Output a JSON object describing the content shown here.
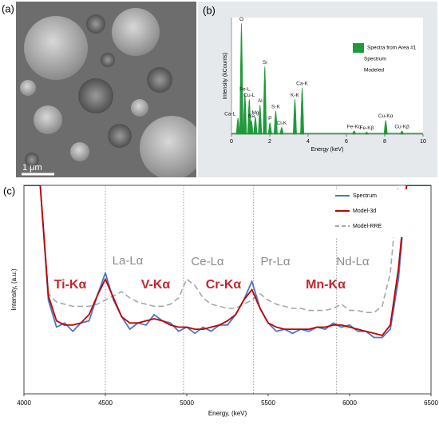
{
  "panels": {
    "a": "(a)",
    "b": "(b)",
    "c": "(c)"
  },
  "image": {
    "scale_bar": "1 μm"
  },
  "chart_data": [
    {
      "type": "spectrum",
      "xlabel": "Energy (keV)",
      "ylabel": "Intensity (kCounts)",
      "xlim": [
        0,
        10
      ],
      "xticks": [
        0,
        2,
        4,
        6,
        8,
        10
      ],
      "ylim": [
        0,
        100
      ],
      "color": "#1f9a3a",
      "legend": [
        "Spectra from Area #1",
        "Spectrum",
        "Modeled"
      ],
      "peaks": {
        "labels": [
          "Ca-L",
          "O",
          "Fe-L",
          "Cu-L",
          "Na",
          "Mg",
          "Al",
          "Si",
          "P",
          "S-K",
          "Cl-K",
          "K-K",
          "Ca-K",
          "Fe-Kα",
          "Fe-Kβ",
          "Cu-Kα",
          "Cu-Kβ"
        ],
        "energy": [
          0.34,
          0.52,
          0.7,
          0.93,
          1.04,
          1.25,
          1.49,
          1.74,
          2.01,
          2.31,
          2.62,
          3.31,
          3.69,
          6.4,
          7.06,
          8.05,
          8.9
        ],
        "height": [
          14,
          95,
          35,
          30,
          12,
          15,
          25,
          58,
          10,
          20,
          6,
          30,
          40,
          3,
          2,
          12,
          3
        ]
      }
    },
    {
      "type": "line",
      "xlabel": "Energy, (keV)",
      "ylabel": "Intensity, (a.u.)",
      "xlim": [
        4000,
        6500
      ],
      "xticks": [
        4000,
        4500,
        5000,
        5500,
        6000,
        6500
      ],
      "ylim": [
        0,
        100
      ],
      "yticks": [],
      "reference_lines": [
        4500,
        4980,
        5410,
        5920
      ],
      "annotations": [
        {
          "text": "Ti-Kα",
          "color": "#c0282d"
        },
        {
          "text": "La-Lα",
          "color": "#8c8c8c"
        },
        {
          "text": "V-Kα",
          "color": "#c0282d"
        },
        {
          "text": "Ce-Lα",
          "color": "#8c8c8c"
        },
        {
          "text": "Cr-Kα",
          "color": "#c0282d"
        },
        {
          "text": "Pr-Lα",
          "color": "#8c8c8c"
        },
        {
          "text": "Mn-Kα",
          "color": "#c0282d"
        },
        {
          "text": "Nd-Lα",
          "color": "#8c8c8c"
        }
      ],
      "x": [
        4000,
        4050,
        4100,
        4150,
        4200,
        4250,
        4300,
        4350,
        4400,
        4450,
        4500,
        4550,
        4600,
        4650,
        4700,
        4750,
        4800,
        4850,
        4900,
        4950,
        5000,
        5050,
        5100,
        5150,
        5200,
        5250,
        5300,
        5350,
        5400,
        5450,
        5500,
        5550,
        5600,
        5650,
        5700,
        5750,
        5800,
        5850,
        5900,
        5950,
        6000,
        6050,
        6100,
        6150,
        6200,
        6250,
        6300,
        6350,
        6400,
        6450,
        6500
      ],
      "series": [
        {
          "name": "Spectrum",
          "color": "#4a78c2",
          "dashed": false,
          "values": [
            100,
            100,
            100,
            45,
            32,
            34,
            30,
            34,
            35,
            47,
            58,
            45,
            37,
            31,
            34,
            33,
            38,
            35,
            34,
            30,
            32,
            29,
            32,
            30,
            33,
            33,
            38,
            45,
            54,
            41,
            34,
            30,
            31,
            29,
            31,
            30,
            32,
            31,
            34,
            32,
            33,
            30,
            30,
            27,
            27,
            31,
            55,
            100,
            100,
            100,
            100
          ]
        },
        {
          "name": "Model-3d",
          "color": "#c00000",
          "dashed": false,
          "values": [
            100,
            100,
            100,
            47,
            35,
            33,
            33,
            34,
            38,
            47,
            55,
            46,
            37,
            34,
            34,
            35,
            36,
            35,
            33,
            32,
            32,
            31,
            31,
            32,
            33,
            35,
            38,
            45,
            50,
            41,
            34,
            32,
            31,
            31,
            31,
            31,
            32,
            32,
            33,
            33,
            32,
            31,
            30,
            29,
            28,
            33,
            60,
            100,
            100,
            100,
            100
          ]
        },
        {
          "name": "Model-RRE",
          "color": "#a6a6a6",
          "dashed": true,
          "values": [
            100,
            100,
            100,
            48,
            44,
            43,
            42,
            42,
            42,
            43,
            45,
            47,
            49,
            46,
            44,
            43,
            42,
            42,
            43,
            46,
            55,
            52,
            46,
            43,
            42,
            41,
            41,
            43,
            45,
            48,
            45,
            43,
            42,
            41,
            41,
            40,
            40,
            40,
            41,
            43,
            40,
            40,
            39,
            39,
            42,
            58,
            100,
            100,
            100,
            100,
            100
          ]
        }
      ],
      "legend": "upper right"
    }
  ]
}
